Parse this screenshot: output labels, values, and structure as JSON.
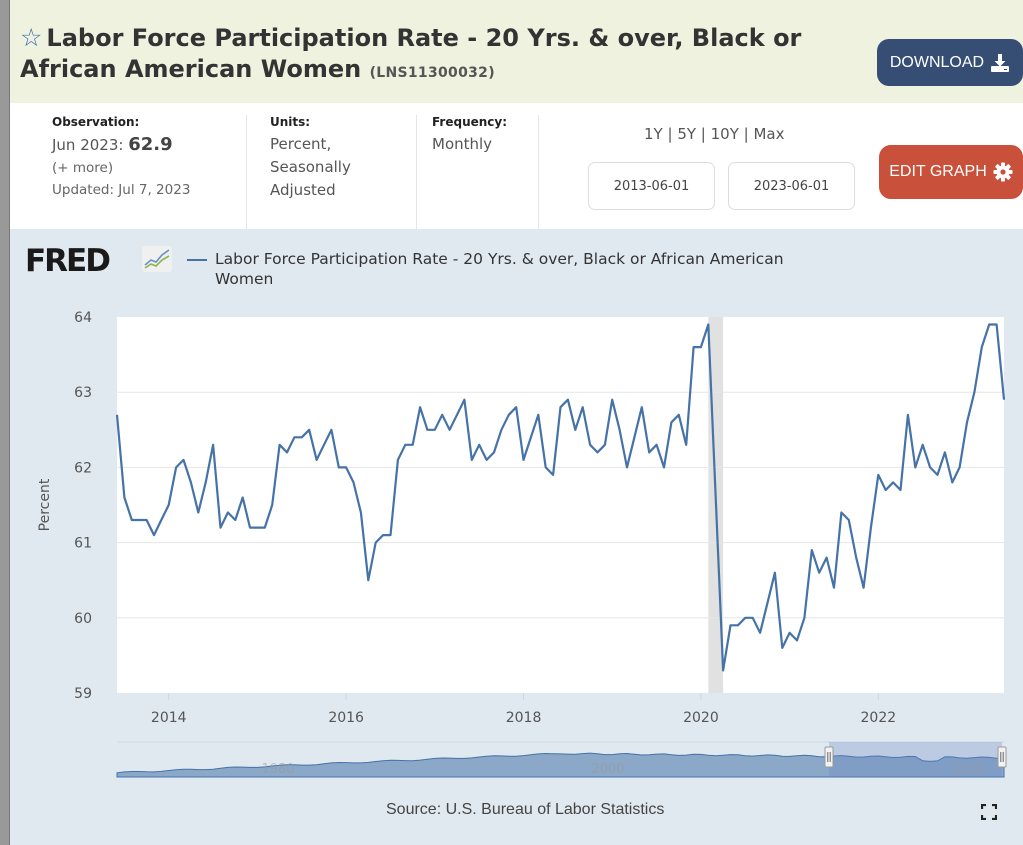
{
  "header": {
    "title_main": "Labor Force Participation Rate - 20 Yrs. & over, Black or African American Women",
    "series_id": "(LNS11300032)",
    "star_icon": "star-outline-icon",
    "download_label": "DOWNLOAD"
  },
  "meta": {
    "observation_label": "Observation:",
    "observation_date": "Jun 2023:",
    "observation_value": "62.9",
    "more_label": "(+ more)",
    "updated": "Updated: Jul 7, 2023",
    "units_label": "Units:",
    "units_line1": "Percent,",
    "units_line2": "Seasonally",
    "units_line3": "Adjusted",
    "frequency_label": "Frequency:",
    "frequency_value": "Monthly",
    "range_links": [
      "1Y",
      "5Y",
      "10Y",
      "Max"
    ],
    "range_sep": " | ",
    "start_date": "2013-06-01",
    "end_date": "2023-06-01",
    "edit_graph_label": "EDIT GRAPH"
  },
  "chart_panel": {
    "logo": "FRED",
    "legend_line1": "Labor Force Participation Rate - 20 Yrs. & over, Black or African American",
    "legend_line2": "Women",
    "source": "Source: U.S. Bureau of Labor Statistics",
    "line_color": "#4572a7",
    "recession_color": "#e1e1e1"
  },
  "chart_data": {
    "type": "line",
    "title": "Labor Force Participation Rate - 20 Yrs. & over, Black or African American Women",
    "xlabel": "",
    "ylabel": "Percent",
    "ylim": [
      59,
      64
    ],
    "yticks": [
      59,
      60,
      61,
      62,
      63,
      64
    ],
    "xticks": [
      "2014",
      "2016",
      "2018",
      "2020",
      "2022"
    ],
    "x_start": "2013-06",
    "x_end": "2023-06",
    "frequency": "monthly",
    "grid": true,
    "legend": "top-left",
    "recession": {
      "start": "2020-02",
      "end": "2020-04"
    },
    "series": [
      {
        "name": "Labor Force Participation Rate - 20 Yrs. & over, Black or African American Women",
        "values": [
          62.7,
          61.6,
          61.3,
          61.3,
          61.3,
          61.1,
          61.3,
          61.5,
          62.0,
          62.1,
          61.8,
          61.4,
          61.8,
          62.3,
          61.2,
          61.4,
          61.3,
          61.6,
          61.2,
          61.2,
          61.2,
          61.5,
          62.3,
          62.2,
          62.4,
          62.4,
          62.5,
          62.1,
          62.3,
          62.5,
          62.0,
          62.0,
          61.8,
          61.4,
          60.5,
          61.0,
          61.1,
          61.1,
          62.1,
          62.3,
          62.3,
          62.8,
          62.5,
          62.5,
          62.7,
          62.5,
          62.7,
          62.9,
          62.1,
          62.3,
          62.1,
          62.2,
          62.5,
          62.7,
          62.8,
          62.1,
          62.4,
          62.7,
          62.0,
          61.9,
          62.8,
          62.9,
          62.5,
          62.8,
          62.3,
          62.2,
          62.3,
          62.9,
          62.5,
          62.0,
          62.4,
          62.8,
          62.2,
          62.3,
          62.0,
          62.6,
          62.7,
          62.3,
          63.6,
          63.6,
          63.9,
          61.6,
          59.3,
          59.9,
          59.9,
          60.0,
          60.0,
          59.8,
          60.2,
          60.6,
          59.6,
          59.8,
          59.7,
          60.0,
          60.9,
          60.6,
          60.8,
          60.4,
          61.4,
          61.3,
          60.8,
          60.4,
          61.2,
          61.9,
          61.7,
          61.8,
          61.7,
          62.7,
          62.0,
          62.3,
          62.0,
          61.9,
          62.2,
          61.8,
          62.0,
          62.6,
          63.0,
          63.6,
          63.9,
          63.9,
          62.9
        ]
      }
    ]
  },
  "navigator": {
    "labels": [
      "1980",
      "2000",
      "2020"
    ]
  }
}
